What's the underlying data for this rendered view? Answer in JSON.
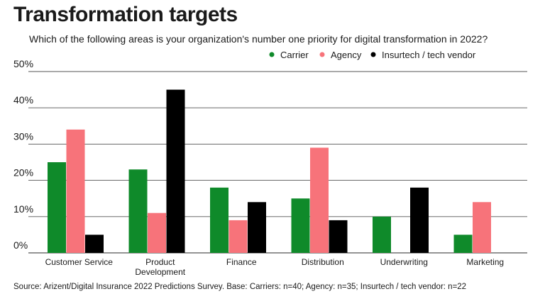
{
  "chart_data": {
    "type": "bar",
    "title": "Transformation targets",
    "subtitle": "Which of the following areas is your organization's number one priority for digital transformation in 2022?",
    "source": "Source: Arizent/Digital Insurance 2022 Predictions Survey. Base: Carriers: n=40; Agency: n=35; Insurtech / tech vendor: n=22",
    "categories": [
      [
        "Customer Service"
      ],
      [
        "Product",
        "Development"
      ],
      [
        "Finance"
      ],
      [
        "Distribution"
      ],
      [
        "Underwriting"
      ],
      [
        "Marketing"
      ]
    ],
    "series": [
      {
        "name": "Carrier",
        "color": "#0f8a2a",
        "values": [
          25,
          23,
          18,
          15,
          10,
          5
        ]
      },
      {
        "name": "Agency",
        "color": "#f7737a",
        "values": [
          34,
          11,
          9,
          29,
          0,
          14
        ]
      },
      {
        "name": "Insurtech / tech vendor",
        "color": "#000000",
        "values": [
          5,
          45,
          14,
          9,
          18,
          0
        ]
      }
    ],
    "yticks": [
      "0%",
      "10%",
      "20%",
      "30%",
      "40%",
      "50%"
    ],
    "ylim": [
      0,
      50
    ],
    "grid": true,
    "legend": "top-right"
  }
}
